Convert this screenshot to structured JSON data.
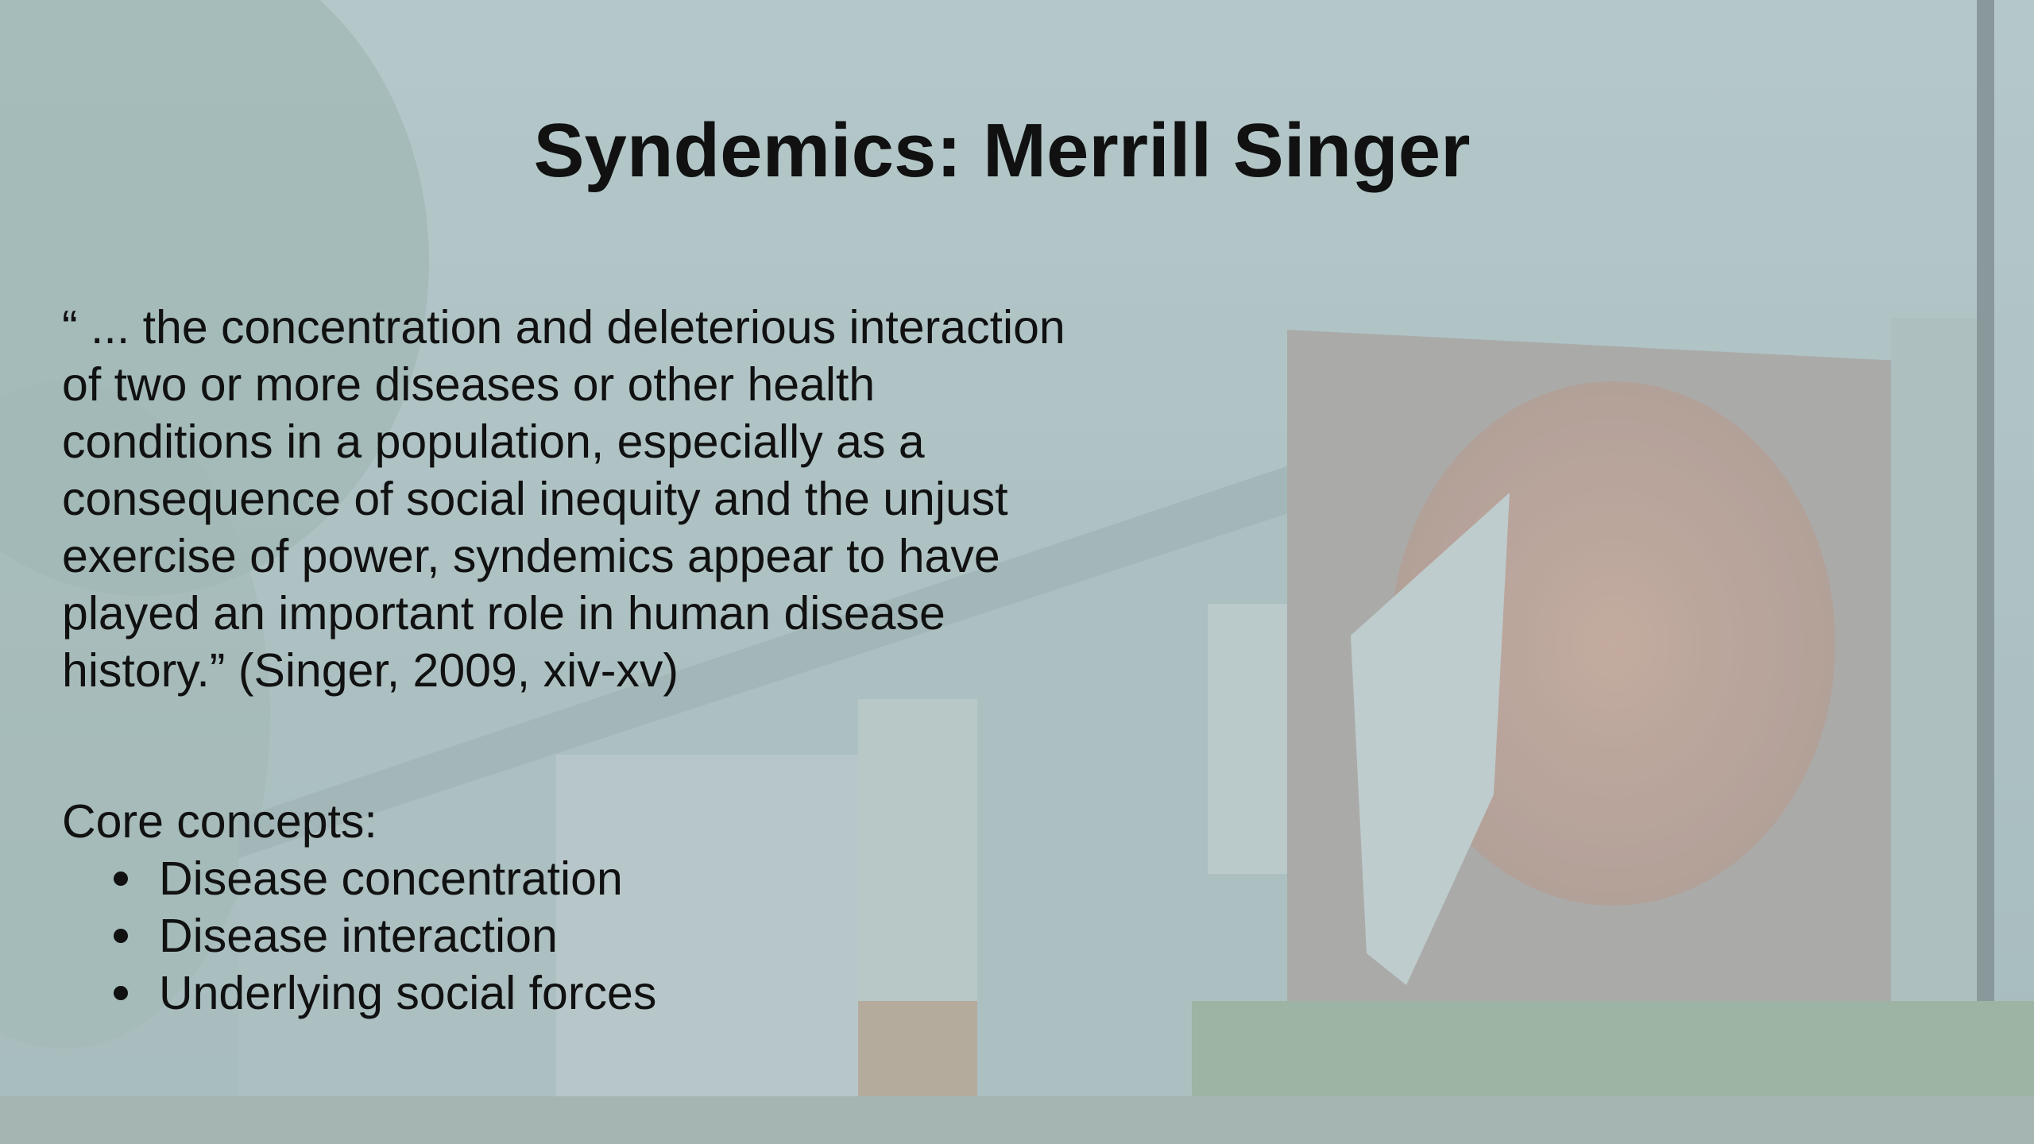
{
  "slide": {
    "title": "Syndemics: Merrill Singer",
    "quote_lines": [
      "“ ... the concentration and deleterious interaction",
      "of two or more diseases or other health",
      "conditions in a population, especially as a",
      "consequence of social inequity and the unjust",
      "exercise of power, syndemics appear to have",
      "played an important role in human disease",
      "history.” (Singer, 2009, xiv-xv)"
    ],
    "concepts_heading": "Core concepts:",
    "concepts": [
      "Disease concentration",
      "Disease interaction",
      "Underlying social forces"
    ]
  }
}
